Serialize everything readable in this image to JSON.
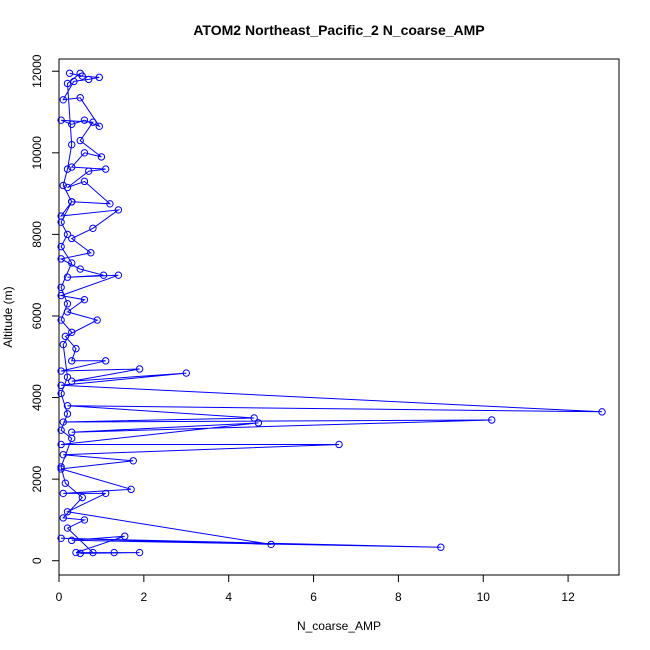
{
  "chart_data": {
    "type": "line",
    "title": "ATOM2 Northeast_Pacific_2 N_coarse_AMP",
    "xlabel": "N_coarse_AMP",
    "ylabel": "Altitude (m)",
    "xlim": [
      0,
      13.2
    ],
    "ylim": [
      -350,
      12300
    ],
    "xticks": [
      "0",
      "2",
      "4",
      "6",
      "8",
      "10",
      "12"
    ],
    "yticks": [
      "0",
      "2000",
      "4000",
      "6000",
      "8000",
      "10000",
      "12000"
    ],
    "grid": false,
    "line_color": "#0000ff",
    "marker": "open-circle",
    "series": [
      {
        "points": [
          [
            0.25,
            11950
          ],
          [
            0.55,
            11880
          ],
          [
            0.95,
            11850
          ],
          [
            0.7,
            11800
          ],
          [
            0.35,
            11750
          ],
          [
            0.1,
            11300
          ],
          [
            0.5,
            11350
          ],
          [
            0.95,
            10650
          ],
          [
            0.6,
            10800
          ],
          [
            0.3,
            10700
          ],
          [
            0.05,
            10800
          ],
          [
            0.8,
            10750
          ],
          [
            0.5,
            10300
          ],
          [
            1.0,
            9900
          ],
          [
            0.6,
            10000
          ],
          [
            0.3,
            9650
          ],
          [
            1.1,
            9600
          ],
          [
            0.7,
            9550
          ],
          [
            0.2,
            9150
          ],
          [
            0.6,
            9300
          ],
          [
            1.2,
            8750
          ],
          [
            0.3,
            8800
          ],
          [
            0.05,
            8450
          ],
          [
            1.4,
            8600
          ],
          [
            0.8,
            8150
          ],
          [
            0.3,
            7900
          ],
          [
            0.75,
            7550
          ],
          [
            0.05,
            7400
          ],
          [
            0.5,
            7150
          ],
          [
            1.05,
            7000
          ],
          [
            0.2,
            6950
          ],
          [
            1.4,
            7000
          ],
          [
            0.05,
            6500
          ],
          [
            0.6,
            6400
          ],
          [
            0.2,
            6100
          ],
          [
            0.9,
            5900
          ],
          [
            0.15,
            5500
          ],
          [
            0.4,
            5200
          ],
          [
            0.3,
            4900
          ],
          [
            1.1,
            4900
          ],
          [
            0.05,
            4650
          ],
          [
            1.9,
            4700
          ],
          [
            0.3,
            4400
          ],
          [
            3.0,
            4600
          ],
          [
            0.05,
            4300
          ],
          [
            12.8,
            3650
          ],
          [
            0.2,
            3800
          ],
          [
            4.6,
            3500
          ],
          [
            0.1,
            3400
          ],
          [
            10.2,
            3450
          ],
          [
            0.3,
            3150
          ],
          [
            4.7,
            3380
          ],
          [
            0.05,
            2850
          ],
          [
            6.6,
            2850
          ],
          [
            0.1,
            2600
          ],
          [
            1.75,
            2450
          ],
          [
            0.05,
            2250
          ],
          [
            1.7,
            1750
          ],
          [
            0.1,
            1650
          ],
          [
            1.1,
            1650
          ],
          [
            0.2,
            1200
          ],
          [
            5.0,
            400
          ],
          [
            0.05,
            550
          ],
          [
            9.0,
            330
          ],
          [
            0.3,
            500
          ],
          [
            1.55,
            600
          ],
          [
            0.4,
            200
          ],
          [
            1.9,
            200
          ],
          [
            0.5,
            180
          ],
          [
            1.3,
            200
          ],
          [
            0.8,
            200
          ],
          [
            0.2,
            800
          ],
          [
            0.6,
            1000
          ],
          [
            0.1,
            1050
          ],
          [
            0.55,
            1550
          ],
          [
            0.15,
            1900
          ],
          [
            0.05,
            2300
          ],
          [
            0.3,
            3000
          ],
          [
            0.05,
            3200
          ],
          [
            0.2,
            3600
          ],
          [
            0.05,
            4100
          ],
          [
            0.2,
            4500
          ],
          [
            0.1,
            5300
          ],
          [
            0.3,
            5600
          ],
          [
            0.05,
            5900
          ],
          [
            0.2,
            6300
          ],
          [
            0.05,
            6700
          ],
          [
            0.3,
            7300
          ],
          [
            0.05,
            7700
          ],
          [
            0.2,
            8000
          ],
          [
            0.05,
            8300
          ],
          [
            0.3,
            8800
          ],
          [
            0.1,
            9200
          ],
          [
            0.2,
            9600
          ],
          [
            0.3,
            10200
          ],
          [
            0.2,
            11700
          ],
          [
            0.5,
            11950
          ]
        ]
      }
    ]
  }
}
